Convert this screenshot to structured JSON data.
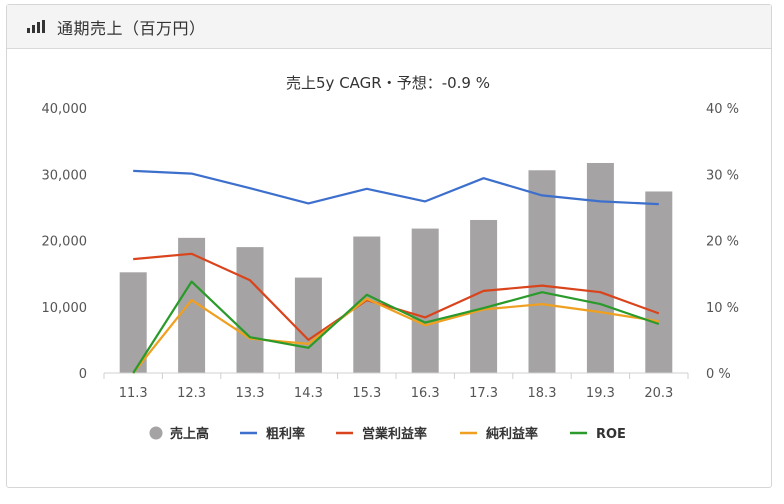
{
  "header": {
    "title": "通期売上（百万円）",
    "icon": "bar-chart-icon"
  },
  "chart_data": {
    "type": "bar",
    "title": "売上5y CAGR・予想：-0.9 %",
    "categories": [
      "11.3",
      "12.3",
      "13.3",
      "14.3",
      "15.3",
      "16.3",
      "17.3",
      "18.3",
      "19.3",
      "20.3"
    ],
    "y_left": {
      "ylim": [
        0,
        40000
      ],
      "ticks": [
        "0",
        "10,000",
        "20,000",
        "30,000",
        "40,000"
      ],
      "tick_values": [
        0,
        10000,
        20000,
        30000,
        40000
      ]
    },
    "y_right": {
      "ylim": [
        0,
        40
      ],
      "ticks": [
        "0 %",
        "10 %",
        "20 %",
        "30 %",
        "40 %"
      ],
      "tick_values": [
        0,
        10,
        20,
        30,
        40
      ]
    },
    "grid": false,
    "legend_position": "bottom",
    "series": [
      {
        "name": "売上高",
        "type": "bar",
        "axis": "left",
        "color": "#a5a3a3",
        "values": [
          15200,
          20400,
          19000,
          14400,
          20600,
          21800,
          23100,
          30600,
          31700,
          27400
        ]
      },
      {
        "name": "粗利率",
        "type": "line",
        "axis": "right",
        "color": "#3d6fcc",
        "values": [
          30.5,
          30.1,
          27.9,
          25.6,
          27.8,
          25.9,
          29.4,
          26.8,
          25.9,
          25.5
        ]
      },
      {
        "name": "営業利益率",
        "type": "line",
        "axis": "right",
        "color": "#d9441c",
        "values": [
          17.2,
          18.0,
          14.0,
          5.0,
          11.0,
          8.4,
          12.4,
          13.2,
          12.2,
          9.0
        ]
      },
      {
        "name": "純利益率",
        "type": "line",
        "axis": "right",
        "color": "#f0a020",
        "values": [
          0.0,
          11.0,
          5.2,
          4.4,
          11.2,
          7.2,
          9.6,
          10.4,
          9.2,
          7.8
        ]
      },
      {
        "name": "ROE",
        "type": "line",
        "axis": "right",
        "color": "#2a9a2a",
        "values": [
          0.0,
          13.8,
          5.4,
          3.8,
          11.8,
          7.6,
          9.8,
          12.2,
          10.4,
          7.4
        ]
      }
    ]
  }
}
